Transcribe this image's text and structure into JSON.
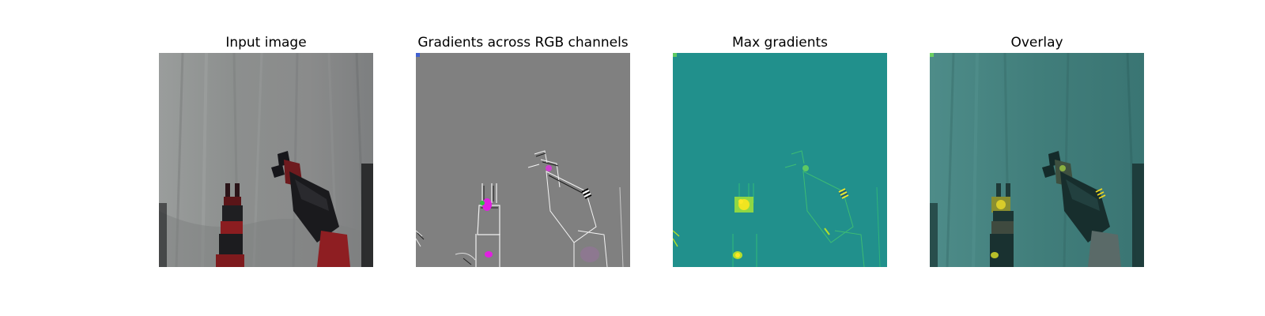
{
  "panels": [
    {
      "title": "Input image"
    },
    {
      "title": "Gradients across RGB channels"
    },
    {
      "title": "Max gradients"
    },
    {
      "title": "Overlay"
    }
  ],
  "colors": {
    "background": "#ffffff",
    "curtain": "#8a8c8b",
    "robot_red": "#8e1e22",
    "robot_black": "#1a1a1e",
    "gradient_gray": "#808080",
    "gradient_magenta": "#e020e0",
    "viridis_bg": "#21908c",
    "viridis_yellow": "#f0e520",
    "viridis_green": "#5ec962",
    "overlay_tint": "#3d7f7c"
  },
  "icons": {
    "input_image": "robot-arms-photo",
    "gradients_rgb": "rgb-saliency-map",
    "max_gradients": "max-saliency-heatmap",
    "overlay": "saliency-overlay-photo"
  }
}
